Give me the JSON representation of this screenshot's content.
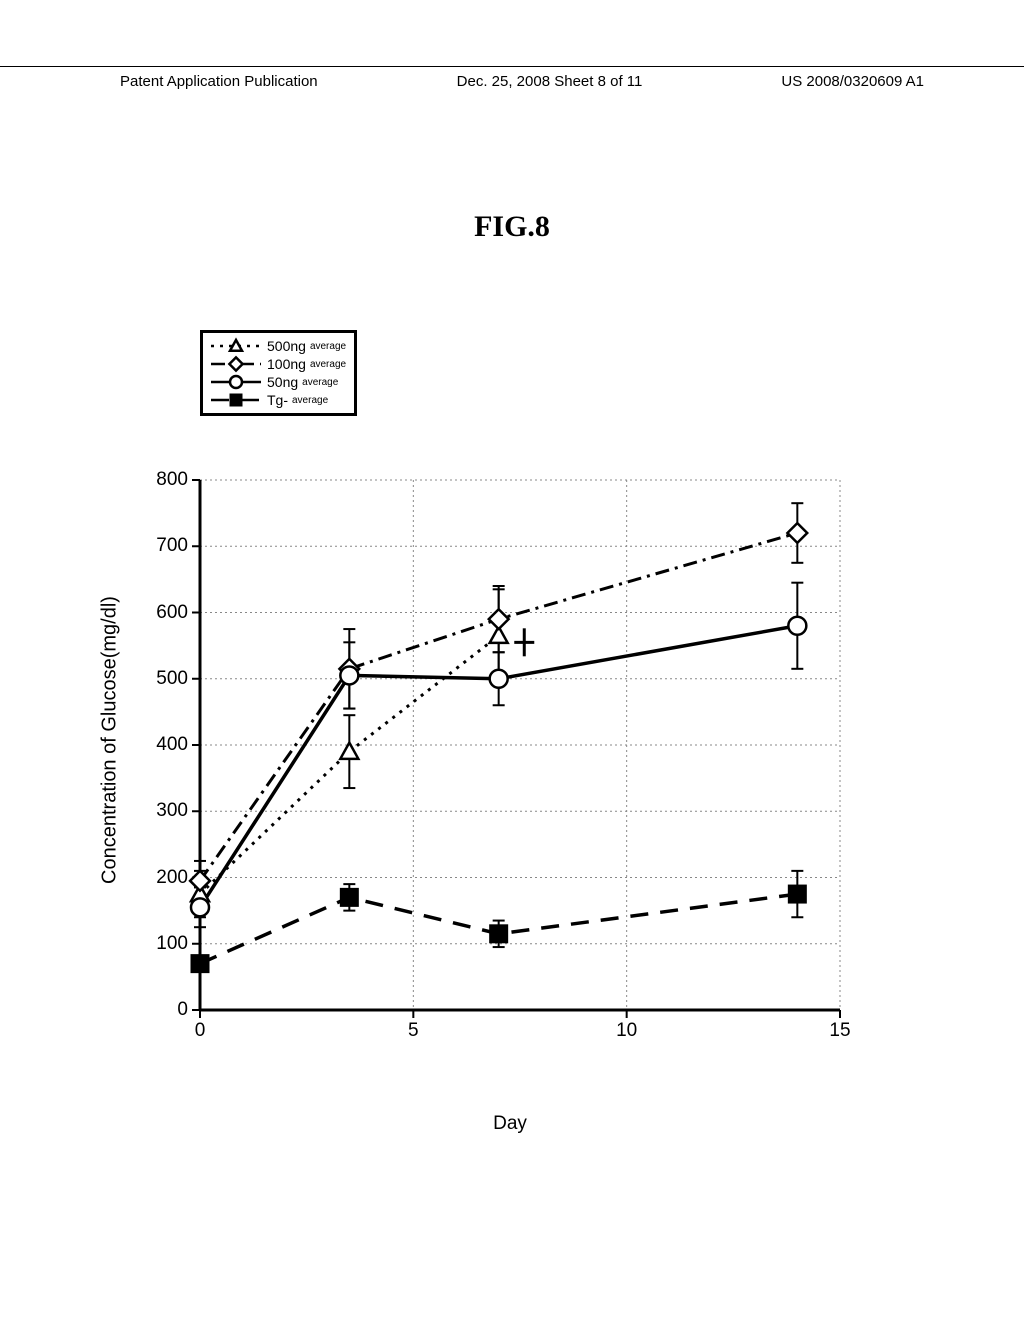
{
  "header": {
    "left": "Patent Application Publication",
    "center": "Dec. 25, 2008  Sheet 8 of 11",
    "right": "US 2008/0320609 A1"
  },
  "figure_title": "FIG.8",
  "chart": {
    "type": "line",
    "xlabel": "Day",
    "ylabel": "Concentration of Glucose(mg/dl)",
    "xlim": [
      0,
      15
    ],
    "ylim": [
      0,
      800
    ],
    "xticks": [
      0,
      5,
      10,
      15
    ],
    "yticks": [
      0,
      100,
      200,
      300,
      400,
      500,
      600,
      700,
      800
    ],
    "grid_color": "#888888",
    "background_color": "#ffffff",
    "axis_color": "#000000",
    "axis_width": 3,
    "series": [
      {
        "name": "500ng",
        "label": "500ng",
        "suffix": "average",
        "marker": "triangle",
        "dash": "dot",
        "line_width": 3,
        "color": "#000000",
        "x": [
          0,
          3.5,
          7
        ],
        "y": [
          175,
          390,
          565
        ],
        "err": [
          35,
          55,
          70
        ]
      },
      {
        "name": "100ng",
        "label": "100ng",
        "suffix": "average",
        "marker": "diamond",
        "dash": "dashdot",
        "line_width": 3,
        "color": "#000000",
        "x": [
          0,
          3.5,
          7,
          14
        ],
        "y": [
          195,
          515,
          590,
          720
        ],
        "err": [
          30,
          60,
          50,
          45
        ]
      },
      {
        "name": "50ng",
        "label": "50ng",
        "suffix": "average",
        "marker": "circle",
        "dash": "solid",
        "line_width": 3.5,
        "color": "#000000",
        "x": [
          0,
          3.5,
          7,
          14
        ],
        "y": [
          155,
          505,
          500,
          580
        ],
        "err": [
          30,
          50,
          40,
          65
        ]
      },
      {
        "name": "Tg-",
        "label": "Tg-",
        "suffix": "average",
        "marker": "square-filled",
        "dash": "dash",
        "line_width": 3.5,
        "color": "#000000",
        "x": [
          0,
          3.5,
          7,
          14
        ],
        "y": [
          70,
          170,
          115,
          175
        ],
        "err": [
          0,
          20,
          20,
          35
        ]
      }
    ]
  }
}
